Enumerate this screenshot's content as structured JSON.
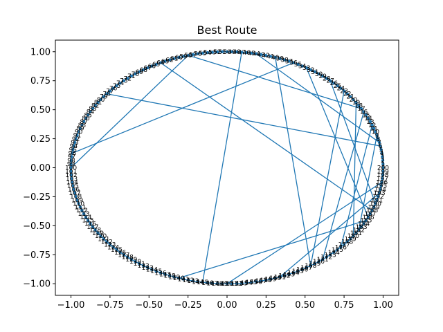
{
  "chart_data": {
    "type": "line",
    "title": "Best Route",
    "xlabel": "",
    "ylabel": "",
    "xlim": [
      -1.1,
      1.1
    ],
    "ylim": [
      -1.1,
      1.1
    ],
    "xticks": [
      -1.0,
      -0.75,
      -0.5,
      -0.25,
      0.0,
      0.25,
      0.5,
      0.75,
      1.0
    ],
    "xtick_labels": [
      "−1.00",
      "−0.75",
      "−0.50",
      "−0.25",
      "0.00",
      "0.25",
      "0.50",
      "0.75",
      "1.00"
    ],
    "yticks": [
      -1.0,
      -0.75,
      -0.5,
      -0.25,
      0.0,
      0.25,
      0.5,
      0.75,
      1.0
    ],
    "ytick_labels": [
      "−1.00",
      "−0.75",
      "−0.50",
      "−0.25",
      "0.00",
      "0.25",
      "0.50",
      "0.75",
      "1.00"
    ],
    "grid": false,
    "line_color": "#1f77b4",
    "num_points": 201,
    "point_labels_shown": true,
    "route_description": "Points are city indices 0–200 placed on the unit circle at angle = index·2π/200; the best route visits them in mostly circular order with several long chords crossing the interior.",
    "route_order": [
      0,
      1,
      2,
      3,
      4,
      5,
      6,
      7,
      8,
      9,
      10,
      11,
      12,
      13,
      14,
      15,
      16,
      17,
      18,
      19,
      20,
      21,
      22,
      23,
      24,
      25,
      26,
      27,
      28,
      29,
      30,
      31,
      32,
      33,
      34,
      35,
      36,
      37,
      38,
      39,
      40,
      41,
      42,
      43,
      44,
      45,
      46,
      47,
      48,
      49,
      50,
      51,
      52,
      53,
      54,
      55,
      56,
      57,
      58,
      59,
      60,
      61,
      62,
      63,
      64,
      65,
      66,
      67,
      68,
      69,
      70,
      71,
      72,
      73,
      74,
      75,
      76,
      77,
      78,
      79,
      80,
      81,
      82,
      83,
      84,
      85,
      86,
      87,
      88,
      89,
      90,
      91,
      92,
      93,
      94,
      95,
      96,
      97,
      98,
      99,
      100,
      101,
      102,
      103,
      104,
      105,
      106,
      107,
      108,
      109,
      110,
      111,
      112,
      113,
      114,
      115,
      116,
      117,
      118,
      119,
      120,
      121,
      122,
      123,
      124,
      125,
      126,
      127,
      128,
      129,
      130,
      131,
      132,
      133,
      134,
      135,
      136,
      137,
      138,
      139,
      140,
      141,
      142,
      143,
      144,
      145,
      146,
      147,
      148,
      149,
      150,
      151,
      152,
      153,
      154,
      155,
      156,
      157,
      158,
      159,
      160,
      161,
      162,
      163,
      164,
      165,
      166,
      167,
      168,
      169,
      170,
      171,
      172,
      173,
      174,
      175,
      176,
      177,
      178,
      179,
      180,
      181,
      182,
      183,
      184,
      185,
      186,
      187,
      188,
      189,
      190,
      191,
      192,
      193,
      194,
      195,
      196,
      197,
      198,
      199,
      200
    ],
    "extra_chords": [
      [
        78,
        6
      ],
      [
        96,
        36
      ],
      [
        100,
        58
      ],
      [
        58,
        17
      ],
      [
        64,
        188
      ],
      [
        145,
        47
      ],
      [
        23,
        168
      ],
      [
        168,
        40
      ],
      [
        140,
        185
      ],
      [
        176,
        12
      ],
      [
        9,
        182
      ],
      [
        27,
        190
      ],
      [
        150,
        196
      ],
      [
        19,
        180
      ],
      [
        44,
        7
      ],
      [
        16,
        171
      ],
      [
        161,
        193
      ],
      [
        33,
        186
      ]
    ]
  }
}
